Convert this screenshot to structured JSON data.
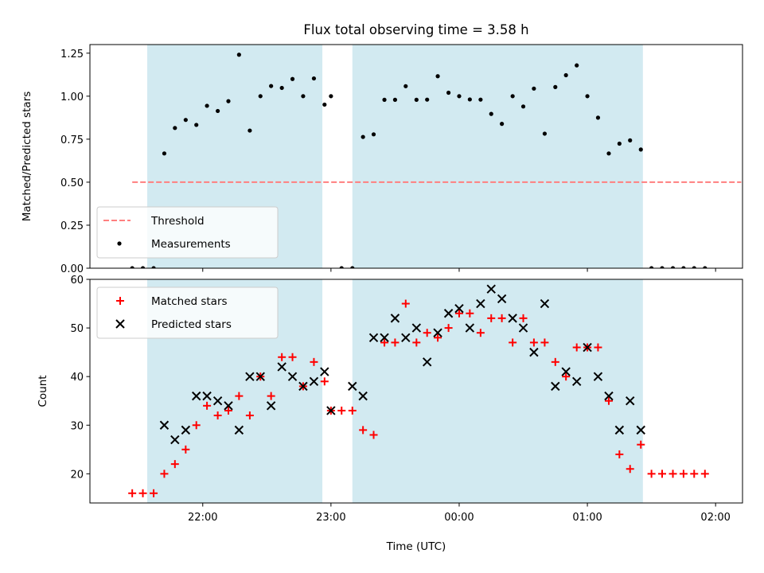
{
  "title": "Flux total observing time = 3.58 h",
  "x_axis": {
    "label": "Time (UTC)",
    "ticks": [
      {
        "t": 22.0,
        "label": "22:00"
      },
      {
        "t": 23.0,
        "label": "23:00"
      },
      {
        "t": 24.0,
        "label": "00:00"
      },
      {
        "t": 25.0,
        "label": "01:00"
      },
      {
        "t": 26.0,
        "label": "02:00"
      }
    ]
  },
  "shaded_intervals": [
    [
      21.567,
      22.933
    ],
    [
      23.167,
      25.433
    ]
  ],
  "colors": {
    "shade": "#add8e6",
    "threshold": "#ff7f7f",
    "measurements": "#000000",
    "matched": "#ff0000",
    "predicted": "#000000"
  },
  "chart_data": [
    {
      "type": "scatter",
      "ylabel": "Matched/Predicted stars",
      "ylim": [
        0,
        1.3
      ],
      "yticks": [
        "0.00",
        "0.25",
        "0.50",
        "0.75",
        "1.00",
        "1.25"
      ],
      "legend": {
        "placement": "lower-left",
        "entries": [
          "Threshold",
          "Measurements"
        ]
      },
      "threshold": {
        "name": "Threshold",
        "value": 0.5,
        "x_range": [
          21.45,
          26.2
        ]
      },
      "series": [
        {
          "name": "Measurements",
          "x": [
            21.45,
            21.533,
            21.617,
            21.7,
            21.783,
            21.867,
            21.95,
            22.033,
            22.117,
            22.2,
            22.283,
            22.367,
            22.45,
            22.533,
            22.617,
            22.7,
            22.783,
            22.867,
            22.95,
            23.0,
            23.083,
            23.167,
            23.25,
            23.333,
            23.417,
            23.5,
            23.583,
            23.667,
            23.75,
            23.833,
            23.917,
            24.0,
            24.083,
            24.167,
            24.25,
            24.333,
            24.417,
            24.5,
            24.583,
            24.667,
            24.75,
            24.833,
            24.917,
            25.0,
            25.083,
            25.167,
            25.25,
            25.333,
            25.417,
            25.5,
            25.583,
            25.667,
            25.75,
            25.833,
            25.917
          ],
          "y": [
            0,
            0,
            0,
            0.667,
            0.815,
            0.862,
            0.833,
            0.944,
            0.914,
            0.971,
            1.241,
            0.8,
            1.0,
            1.059,
            1.048,
            1.1,
            1.0,
            1.103,
            0.951,
            1.0,
            0,
            0,
            0.763,
            0.778,
            0.979,
            0.979,
            1.058,
            0.979,
            0.98,
            1.116,
            1.02,
            1.0,
            0.981,
            0.98,
            0.897,
            0.839,
            1.0,
            0.94,
            1.044,
            0.782,
            1.053,
            1.122,
            1.179,
            1.0,
            0.875,
            0.667,
            0.724,
            0.743,
            0.69,
            0,
            0,
            0,
            0,
            0,
            0
          ]
        }
      ]
    },
    {
      "type": "scatter",
      "ylabel": "Count",
      "ylim": [
        14,
        60
      ],
      "yticks": [
        "20",
        "30",
        "40",
        "50",
        "60"
      ],
      "legend": {
        "placement": "upper-left",
        "entries": [
          "Matched stars",
          "Predicted stars"
        ]
      },
      "series": [
        {
          "name": "Matched stars",
          "marker": "+",
          "x": [
            21.45,
            21.533,
            21.617,
            21.7,
            21.783,
            21.867,
            21.95,
            22.033,
            22.117,
            22.2,
            22.283,
            22.367,
            22.45,
            22.533,
            22.617,
            22.7,
            22.783,
            22.867,
            22.95,
            23.0,
            23.083,
            23.167,
            23.25,
            23.333,
            23.417,
            23.5,
            23.583,
            23.667,
            23.75,
            23.833,
            23.917,
            24.0,
            24.083,
            24.167,
            24.25,
            24.333,
            24.417,
            24.5,
            24.583,
            24.667,
            24.75,
            24.833,
            24.917,
            25.0,
            25.083,
            25.167,
            25.25,
            25.333,
            25.417,
            25.5,
            25.583,
            25.667,
            25.75,
            25.833,
            25.917
          ],
          "y": [
            16,
            16,
            16,
            20,
            22,
            25,
            30,
            34,
            32,
            33,
            36,
            32,
            40,
            36,
            44,
            44,
            38,
            43,
            39,
            33,
            33,
            33,
            29,
            28,
            47,
            47,
            55,
            47,
            49,
            48,
            50,
            53,
            53,
            49,
            52,
            52,
            47,
            52,
            47,
            47,
            43,
            40,
            46,
            46,
            46,
            35,
            24,
            21,
            26,
            20,
            20,
            20,
            20,
            20,
            20
          ]
        },
        {
          "name": "Predicted stars",
          "marker": "x",
          "x": [
            21.7,
            21.783,
            21.867,
            21.95,
            22.033,
            22.117,
            22.2,
            22.283,
            22.367,
            22.45,
            22.533,
            22.617,
            22.7,
            22.783,
            22.867,
            22.95,
            23.0,
            23.167,
            23.25,
            23.333,
            23.417,
            23.5,
            23.583,
            23.667,
            23.75,
            23.833,
            23.917,
            24.0,
            24.083,
            24.167,
            24.25,
            24.333,
            24.417,
            24.5,
            24.583,
            24.667,
            24.75,
            24.833,
            24.917,
            25.0,
            25.083,
            25.167,
            25.25,
            25.333,
            25.417
          ],
          "y": [
            30,
            27,
            29,
            36,
            36,
            35,
            34,
            29,
            40,
            40,
            34,
            42,
            40,
            38,
            39,
            41,
            33,
            38,
            36,
            48,
            48,
            52,
            48,
            50,
            43,
            49,
            53,
            54,
            50,
            55,
            58,
            56,
            52,
            50,
            45,
            55,
            38,
            41,
            39,
            46,
            40,
            36,
            29,
            35,
            29
          ]
        }
      ]
    }
  ]
}
